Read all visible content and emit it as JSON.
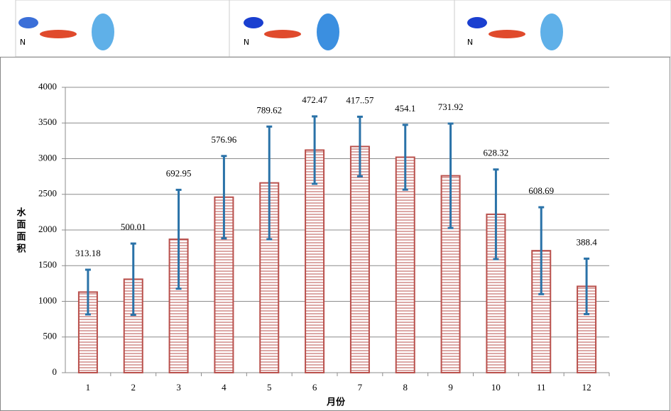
{
  "map_panels": [
    {
      "north": "N"
    },
    {
      "north": "N"
    },
    {
      "north": "N"
    }
  ],
  "chart_data": {
    "type": "bar",
    "x_label": "月份",
    "y_label": "水面面积",
    "categories": [
      "1",
      "2",
      "3",
      "4",
      "5",
      "6",
      "7",
      "8",
      "9",
      "10",
      "11",
      "12"
    ],
    "values": [
      1130,
      1310,
      1870,
      2460,
      2660,
      3120,
      3170,
      3020,
      2760,
      2220,
      1710,
      1210
    ],
    "errors": [
      313.18,
      500.01,
      692.95,
      576.96,
      789.62,
      472.47,
      417.57,
      454.1,
      731.92,
      628.32,
      608.69,
      388.4
    ],
    "error_labels": [
      "313.18",
      "500.01",
      "692.95",
      "576.96",
      "789.62",
      "472.47",
      "417..57",
      "454.1",
      "731.92",
      "628.32",
      "608.69",
      "388.4"
    ],
    "color": "#b9504c",
    "error_color": "#2a72a8",
    "ylim": [
      0,
      4000
    ],
    "yticks": [
      0,
      500,
      1000,
      1500,
      2000,
      2500,
      3000,
      3500,
      4000
    ],
    "grid": true
  }
}
